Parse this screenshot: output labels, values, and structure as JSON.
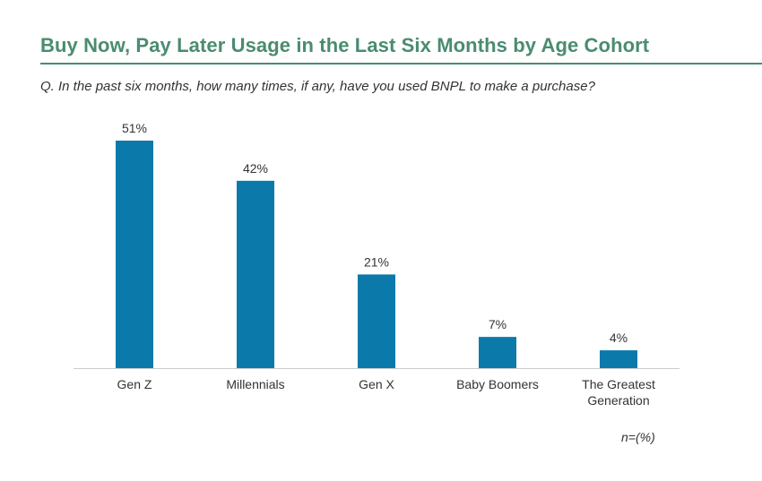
{
  "title": "Buy Now, Pay Later Usage in the Last Six Months by Age Cohort",
  "subtitle": "Q. In the past six months, how many times, if any, have you used BNPL to make a purchase?",
  "note": "n=(%)",
  "colors": {
    "bar": "#0b7aab",
    "title": "#4a8c6f",
    "axis": "#cccccc"
  },
  "chart_data": {
    "type": "bar",
    "title": "Buy Now, Pay Later Usage in the Last Six Months by Age Cohort",
    "categories": [
      "Gen Z",
      "Millennials",
      "Gen X",
      "Baby Boomers",
      "The Greatest Generation"
    ],
    "category_lines": [
      [
        "Gen Z"
      ],
      [
        "Millennials"
      ],
      [
        "Gen X"
      ],
      [
        "Baby Boomers"
      ],
      [
        "The Greatest",
        "Generation"
      ]
    ],
    "values": [
      51,
      42,
      21,
      7,
      4
    ],
    "value_labels": [
      "51%",
      "42%",
      "21%",
      "7%",
      "4%"
    ],
    "unit": "%",
    "ylim": [
      0,
      51
    ],
    "grid": false,
    "legend": "none"
  }
}
